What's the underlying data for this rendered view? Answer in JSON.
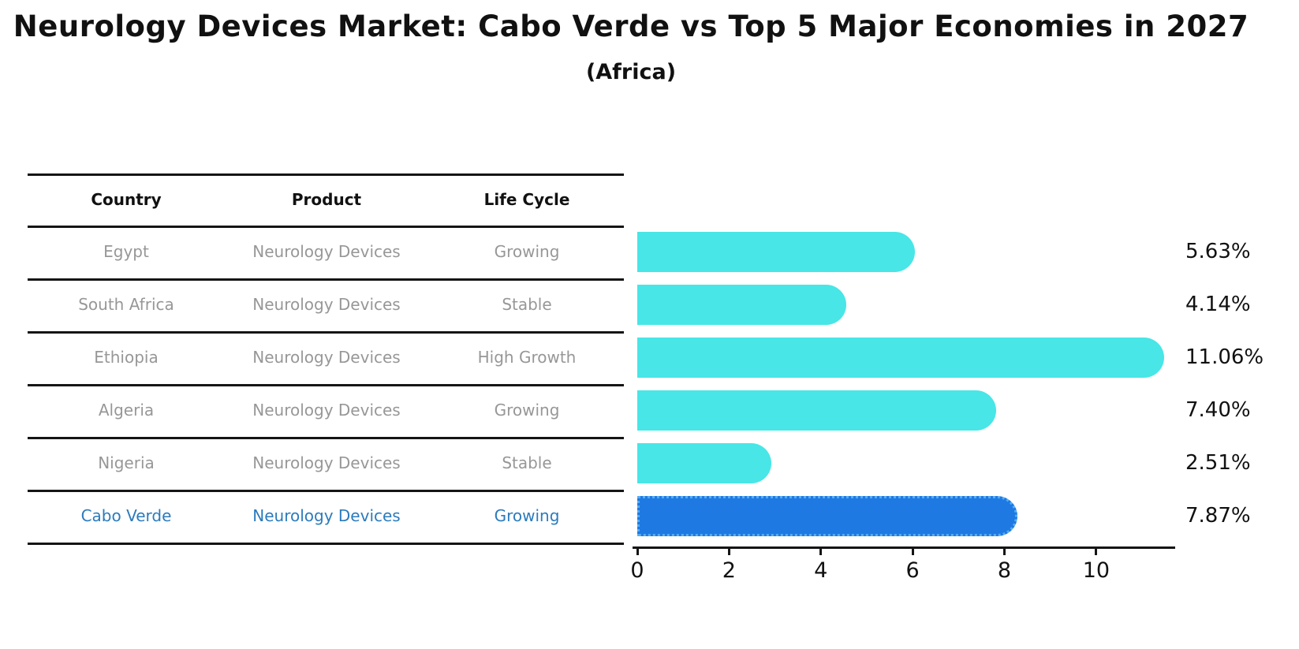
{
  "title": "Neurology Devices Market: Cabo Verde vs Top 5 Major Economies in 2027",
  "subtitle": "(Africa)",
  "table": {
    "columns": [
      "Country",
      "Product",
      "Life Cycle"
    ],
    "rows": [
      {
        "country": "Egypt",
        "product": "Neurology Devices",
        "life_cycle": "Growing",
        "highlight": false
      },
      {
        "country": "South Africa",
        "product": "Neurology Devices",
        "life_cycle": "Stable",
        "highlight": false
      },
      {
        "country": "Ethiopia",
        "product": "Neurology Devices",
        "life_cycle": "High Growth",
        "highlight": false
      },
      {
        "country": "Algeria",
        "product": "Neurology Devices",
        "life_cycle": "Growing",
        "highlight": false
      },
      {
        "country": "Nigeria",
        "product": "Neurology Devices",
        "life_cycle": "Stable",
        "highlight": false
      },
      {
        "country": "Cabo Verde",
        "product": "Neurology Devices",
        "life_cycle": "Growing",
        "highlight": true
      }
    ]
  },
  "chart_data": {
    "type": "bar",
    "orientation": "horizontal",
    "title": "Neurology Devices Market: Cabo Verde vs Top 5 Major Economies in 2027",
    "subtitle": "(Africa)",
    "categories": [
      "Egypt",
      "South Africa",
      "Ethiopia",
      "Algeria",
      "Nigeria",
      "Cabo Verde"
    ],
    "values": [
      5.63,
      4.14,
      11.06,
      7.4,
      2.51,
      7.87
    ],
    "labels": [
      "5.63%",
      "4.14%",
      "11.06%",
      "7.40%",
      "2.51%",
      "7.87%"
    ],
    "unit": "percent",
    "xticks": [
      0,
      2,
      4,
      6,
      8,
      10
    ],
    "xlim": [
      0,
      11.72
    ],
    "grid": false,
    "legend": "none",
    "highlight_index": 5,
    "bar_color": "#48E6E6",
    "highlight_color": "#1E7AE2",
    "highlight_edge_color": "#57ACF5"
  },
  "colors": {
    "row_text": "#979797",
    "highlight_text": "#2B7BBD",
    "header_text": "#111111",
    "line": "#151515",
    "background": "#FFFFFF"
  }
}
